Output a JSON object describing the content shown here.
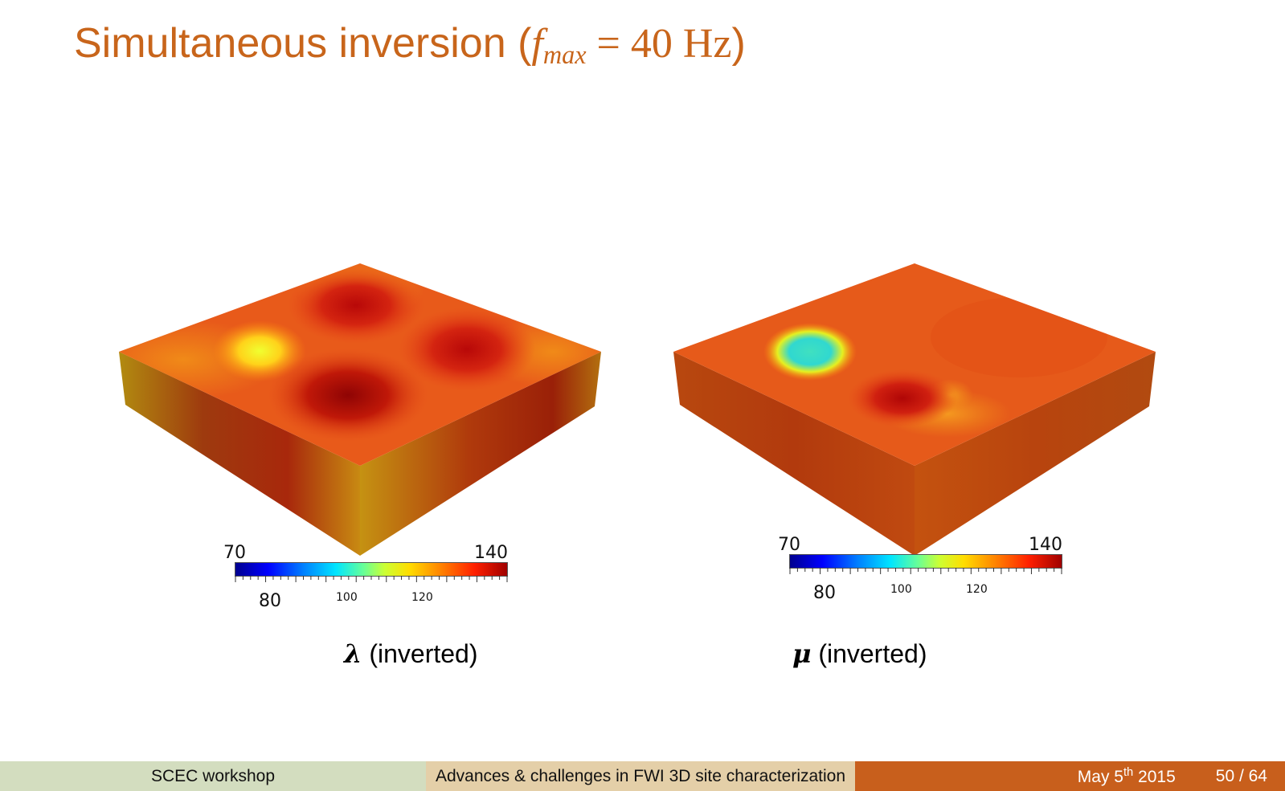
{
  "slide": {
    "title_text": "Simultaneous inversion (",
    "title_math_f": "f",
    "title_math_sub": "max",
    "title_math_eq": "= 40 Hz",
    "title_close": ")"
  },
  "panels": [
    {
      "caption_symbol": "λ",
      "caption_text": " (inverted)",
      "colorbar": {
        "min": "70",
        "max": "140",
        "labels": [
          "80",
          "100",
          "120"
        ]
      }
    },
    {
      "caption_symbol": "μ",
      "caption_text": " (inverted)",
      "colorbar": {
        "min": "70",
        "max": "140",
        "labels": [
          "80",
          "100",
          "120"
        ]
      }
    }
  ],
  "footer": {
    "event": "SCEC workshop",
    "talk_title": "Advances & challenges in FWI 3D site characterization",
    "date_pre": "May 5",
    "date_sup": "th",
    "date_year": " 2015",
    "page": "50 / 64"
  },
  "colors": {
    "accent": "#c8651b",
    "footer_left": "#d3ddbf",
    "footer_mid": "#e4cfa8",
    "footer_right": "#c85f1c"
  }
}
